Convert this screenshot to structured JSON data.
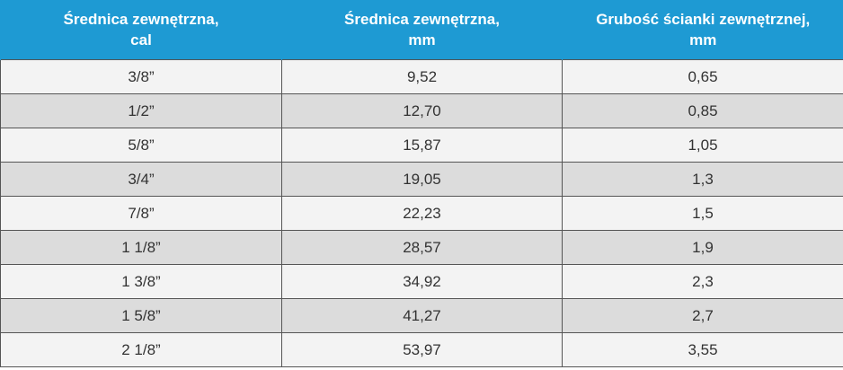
{
  "table": {
    "header": [
      [
        "Średnica zewnętrzna,",
        "cal"
      ],
      [
        "Średnica zewnętrzna,",
        "mm"
      ],
      [
        "Grubość ścianki zewnętrznej,",
        "mm"
      ]
    ],
    "rows": [
      [
        "3/8”",
        "9,52",
        "0,65"
      ],
      [
        "1/2”",
        "12,70",
        "0,85"
      ],
      [
        "5/8”",
        "15,87",
        "1,05"
      ],
      [
        "3/4”",
        "19,05",
        "1,3"
      ],
      [
        "7/8”",
        "22,23",
        "1,5"
      ],
      [
        "1 1/8”",
        "28,57",
        "1,9"
      ],
      [
        "1 3/8”",
        "34,92",
        "2,3"
      ],
      [
        "1 5/8”",
        "41,27",
        "2,7"
      ],
      [
        "2 1/8”",
        "53,97",
        "3,55"
      ]
    ]
  }
}
